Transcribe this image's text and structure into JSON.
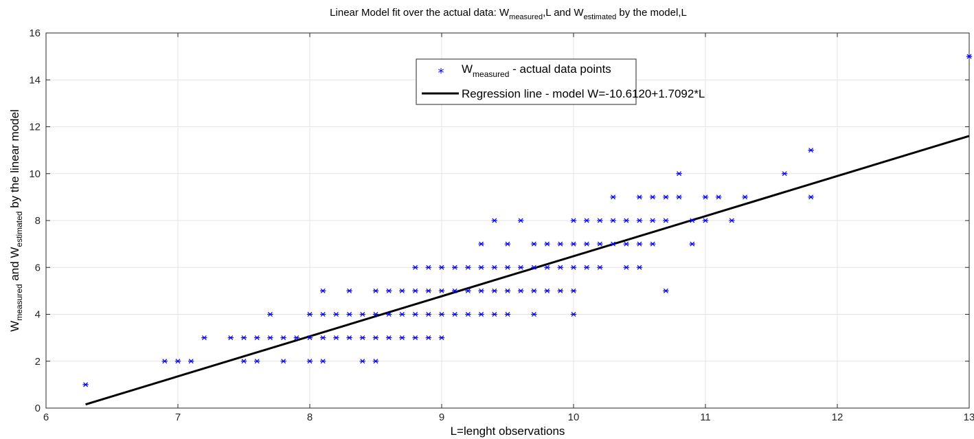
{
  "chart_data": {
    "type": "scatter",
    "title": {
      "main": "Linear Model fit over the actual data: W",
      "sub1": "measured",
      "mid": ",L and W",
      "sub2": "estimated",
      "end": " by the model,L"
    },
    "xlabel": "L=lenght observations",
    "ylabel": {
      "p1": "W",
      "s1": "measured",
      "p2": " and W",
      "s2": "estimated",
      "p3": " by the linear model"
    },
    "xlim": [
      6,
      13
    ],
    "ylim": [
      0,
      16
    ],
    "xticks": [
      6,
      7,
      8,
      9,
      10,
      11,
      12,
      13
    ],
    "yticks": [
      0,
      2,
      4,
      6,
      8,
      10,
      12,
      14,
      16
    ],
    "grid": true,
    "legend_position": "top-center",
    "series": [
      {
        "kind": "points",
        "legend": {
          "p1": "W",
          "s1": "measured",
          "p2": " - actual data points"
        },
        "color": "#0000ff",
        "x": [
          6.3,
          6.9,
          7.0,
          7.1,
          7.2,
          7.4,
          7.5,
          7.5,
          7.6,
          7.6,
          7.7,
          7.7,
          7.8,
          7.8,
          7.9,
          8.0,
          8.0,
          8.0,
          8.1,
          8.1,
          8.1,
          8.1,
          8.2,
          8.2,
          8.3,
          8.3,
          8.3,
          8.4,
          8.4,
          8.4,
          8.5,
          8.5,
          8.5,
          8.5,
          8.6,
          8.6,
          8.6,
          8.7,
          8.7,
          8.7,
          8.8,
          8.8,
          8.8,
          8.8,
          8.9,
          8.9,
          8.9,
          8.9,
          9.0,
          9.0,
          9.0,
          9.0,
          9.1,
          9.1,
          9.1,
          9.2,
          9.2,
          9.2,
          9.3,
          9.3,
          9.3,
          9.3,
          9.4,
          9.4,
          9.4,
          9.4,
          9.5,
          9.5,
          9.5,
          9.5,
          9.6,
          9.6,
          9.6,
          9.7,
          9.7,
          9.7,
          9.7,
          9.8,
          9.8,
          9.8,
          9.9,
          9.9,
          9.9,
          10.0,
          10.0,
          10.0,
          10.0,
          10.0,
          10.1,
          10.1,
          10.1,
          10.2,
          10.2,
          10.2,
          10.3,
          10.3,
          10.3,
          10.4,
          10.4,
          10.4,
          10.5,
          10.5,
          10.5,
          10.5,
          10.6,
          10.6,
          10.6,
          10.7,
          10.7,
          10.7,
          10.8,
          10.8,
          10.9,
          10.9,
          11.0,
          11.0,
          11.1,
          11.2,
          11.3,
          11.6,
          11.8,
          11.8,
          13.0
        ],
        "y": [
          1,
          2,
          2,
          2,
          3,
          3,
          2,
          3,
          2,
          3,
          3,
          4,
          2,
          3,
          3,
          2,
          3,
          4,
          2,
          3,
          4,
          5,
          3,
          4,
          3,
          4,
          5,
          2,
          3,
          4,
          2,
          3,
          4,
          5,
          3,
          4,
          5,
          3,
          4,
          5,
          3,
          4,
          5,
          6,
          3,
          4,
          5,
          6,
          3,
          4,
          5,
          6,
          4,
          5,
          6,
          4,
          5,
          6,
          4,
          5,
          6,
          7,
          4,
          5,
          6,
          8,
          4,
          5,
          6,
          7,
          5,
          6,
          8,
          4,
          5,
          6,
          7,
          5,
          6,
          7,
          5,
          6,
          7,
          4,
          5,
          6,
          7,
          8,
          6,
          7,
          8,
          6,
          7,
          8,
          7,
          8,
          9,
          6,
          7,
          8,
          6,
          7,
          8,
          9,
          7,
          8,
          9,
          5,
          8,
          9,
          9,
          10,
          7,
          8,
          8,
          9,
          9,
          8,
          9,
          10,
          9,
          11,
          15
        ]
      },
      {
        "kind": "line",
        "legend": "Regression line - model W=-10.6120+1.7092*L",
        "color": "#000000",
        "intercept": -10.612,
        "slope": 1.7092,
        "x_range": [
          6.3,
          13.0
        ]
      }
    ]
  }
}
